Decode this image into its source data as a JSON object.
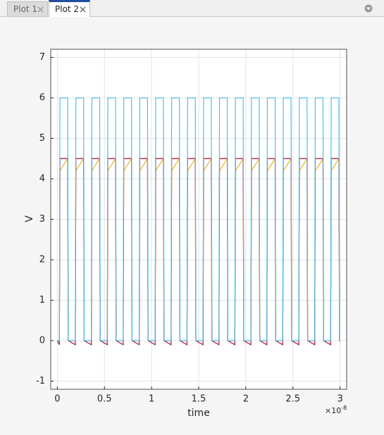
{
  "tabs": [
    "Plot 1",
    "Plot 2"
  ],
  "chart_data": {
    "type": "line",
    "xlabel": "time",
    "ylabel": "V",
    "x_multiplier": {
      "base": "×10",
      "exponent": "-8"
    },
    "xlim": [
      -0.07,
      3.07
    ],
    "ylim": [
      -1.2,
      7.2
    ],
    "xticks": [
      0,
      0.5,
      1,
      1.5,
      2,
      2.5,
      3
    ],
    "yticks": [
      -1,
      0,
      1,
      2,
      3,
      4,
      5,
      6,
      7
    ],
    "grid": true,
    "x": [
      0,
      0.022,
      0.028,
      0.11,
      0.116,
      0.191,
      0.197,
      0.279,
      0.285,
      0.361,
      0.367,
      0.449,
      0.455,
      0.53,
      0.536,
      0.618,
      0.624,
      0.699,
      0.705,
      0.787,
      0.793,
      0.869,
      0.875,
      0.957,
      0.963,
      1.038,
      1.044,
      1.126,
      1.132,
      1.207,
      1.213,
      1.295,
      1.301,
      1.376,
      1.382,
      1.464,
      1.47,
      1.546,
      1.552,
      1.634,
      1.64,
      1.715,
      1.721,
      1.803,
      1.809,
      1.884,
      1.89,
      1.972,
      1.978,
      2.054,
      2.06,
      2.142,
      2.148,
      2.223,
      2.229,
      2.311,
      2.317,
      2.392,
      2.398,
      2.48,
      2.486,
      2.562,
      2.568,
      2.65,
      2.656,
      2.731,
      2.737,
      2.819,
      2.825,
      2.9,
      2.906,
      2.988,
      2.994,
      3
    ],
    "series": [
      {
        "color": "#edb120",
        "values": [
          0,
          0,
          4.2,
          4.5,
          0,
          0,
          4.2,
          4.5,
          0,
          0,
          4.2,
          4.5,
          0,
          0,
          4.2,
          4.5,
          0,
          0,
          4.2,
          4.5,
          0,
          0,
          4.2,
          4.5,
          0,
          0,
          4.2,
          4.5,
          0,
          0,
          4.2,
          4.5,
          0,
          0,
          4.2,
          4.5,
          0,
          0,
          4.2,
          4.5,
          0,
          0,
          4.2,
          4.5,
          0,
          0,
          4.2,
          4.5,
          0,
          0,
          4.2,
          4.5,
          0,
          0,
          4.2,
          4.5,
          0,
          0,
          4.2,
          4.5,
          0,
          0,
          4.2,
          4.5,
          0,
          0,
          4.2,
          4.5,
          0,
          0,
          4.2,
          4.5,
          0,
          0
        ]
      },
      {
        "color": "#a2142f",
        "values": [
          0,
          -0.1,
          4.5,
          4.5,
          0,
          -0.1,
          4.5,
          4.5,
          0,
          -0.1,
          4.5,
          4.5,
          0,
          -0.1,
          4.5,
          4.5,
          0,
          -0.1,
          4.5,
          4.5,
          0,
          -0.1,
          4.5,
          4.5,
          0,
          -0.1,
          4.5,
          4.5,
          0,
          -0.1,
          4.5,
          4.5,
          0,
          -0.1,
          4.5,
          4.5,
          0,
          -0.1,
          4.5,
          4.5,
          0,
          -0.1,
          4.5,
          4.5,
          0,
          -0.1,
          4.5,
          4.5,
          0,
          -0.1,
          4.5,
          4.5,
          0,
          -0.1,
          4.5,
          4.5,
          0,
          -0.1,
          4.5,
          4.5,
          0,
          -0.1,
          4.5,
          4.5,
          0,
          -0.1,
          4.5,
          4.5,
          0,
          -0.1,
          4.5,
          4.5,
          0,
          0
        ]
      },
      {
        "color": "#4dbeee",
        "values": [
          0,
          0,
          6,
          6,
          0,
          0,
          6,
          6,
          0,
          0,
          6,
          6,
          0,
          0,
          6,
          6,
          0,
          0,
          6,
          6,
          0,
          0,
          6,
          6,
          0,
          0,
          6,
          6,
          0,
          0,
          6,
          6,
          0,
          0,
          6,
          6,
          0,
          0,
          6,
          6,
          0,
          0,
          6,
          6,
          0,
          0,
          6,
          6,
          0,
          0,
          6,
          6,
          0,
          0,
          6,
          6,
          0,
          0,
          6,
          6,
          0,
          0,
          6,
          6,
          0,
          0,
          6,
          6,
          0,
          0,
          6,
          6,
          0,
          0
        ]
      }
    ]
  }
}
